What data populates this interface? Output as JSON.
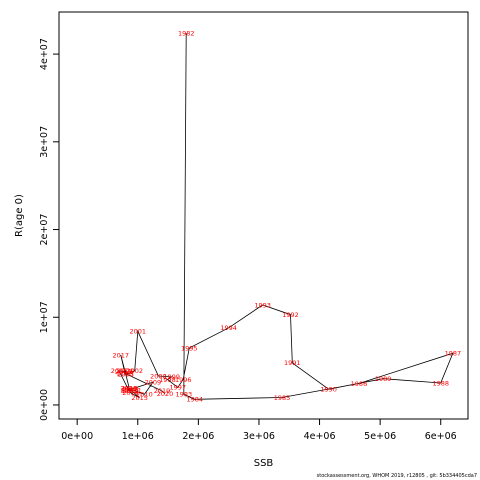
{
  "colors": {
    "label": "#ff0000",
    "line": "#000000",
    "axis": "#000000"
  },
  "footnote": "stockassessment.org, WHOM 2019, r12805 , git: 5b334405cda7",
  "chart_data": {
    "type": "line",
    "xlabel": "SSB",
    "ylabel": "R(age 0)",
    "xlim": [
      -300000,
      6450000
    ],
    "ylim": [
      -1600000,
      44800000
    ],
    "xticks": [
      0,
      1000000,
      2000000,
      3000000,
      4000000,
      5000000,
      6000000
    ],
    "xtick_labels": [
      "0e+00",
      "1e+06",
      "2e+06",
      "3e+06",
      "4e+06",
      "5e+06",
      "6e+06"
    ],
    "yticks": [
      0,
      10000000,
      20000000,
      30000000,
      40000000
    ],
    "ytick_labels": [
      "0e+00",
      "1e+07",
      "2e+07",
      "3e+07",
      "4e+07"
    ],
    "points": [
      {
        "year": "1982",
        "ssb": 1800000,
        "rec": 42400000
      },
      {
        "year": "1983",
        "ssb": 1760000,
        "rec": 1200000
      },
      {
        "year": "1984",
        "ssb": 1940000,
        "rec": 650000
      },
      {
        "year": "1985",
        "ssb": 3380000,
        "rec": 850000
      },
      {
        "year": "1986",
        "ssb": 4650000,
        "rec": 2450000
      },
      {
        "year": "1987",
        "ssb": 6200000,
        "rec": 5900000
      },
      {
        "year": "1988",
        "ssb": 6000000,
        "rec": 2500000
      },
      {
        "year": "1989",
        "ssb": 5050000,
        "rec": 3000000
      },
      {
        "year": "1990",
        "ssb": 4150000,
        "rec": 1800000
      },
      {
        "year": "1991",
        "ssb": 3550000,
        "rec": 4800000
      },
      {
        "year": "1992",
        "ssb": 3520000,
        "rec": 10300000
      },
      {
        "year": "1993",
        "ssb": 3060000,
        "rec": 11400000
      },
      {
        "year": "1994",
        "ssb": 2500000,
        "rec": 8800000
      },
      {
        "year": "1995",
        "ssb": 1850000,
        "rec": 6500000
      },
      {
        "year": "1996",
        "ssb": 1750000,
        "rec": 2900000
      },
      {
        "year": "1997",
        "ssb": 1660000,
        "rec": 2000000
      },
      {
        "year": "1998",
        "ssb": 1490000,
        "rec": 2900000
      },
      {
        "year": "1999",
        "ssb": 1560000,
        "rec": 3200000
      },
      {
        "year": "2000",
        "ssb": 1340000,
        "rec": 3300000
      },
      {
        "year": "2001",
        "ssb": 1000000,
        "rec": 8400000
      },
      {
        "year": "2002",
        "ssb": 950000,
        "rec": 3900000
      },
      {
        "year": "2003",
        "ssb": 800000,
        "rec": 3500000
      },
      {
        "year": "2004",
        "ssb": 790000,
        "rec": 3900000
      },
      {
        "year": "2005",
        "ssb": 760000,
        "rec": 3800000
      },
      {
        "year": "2006",
        "ssb": 690000,
        "rec": 3900000
      },
      {
        "year": "2007",
        "ssb": 850000,
        "rec": 1700000
      },
      {
        "year": "2008",
        "ssb": 880000,
        "rec": 1800000
      },
      {
        "year": "2009",
        "ssb": 1250000,
        "rec": 2600000
      },
      {
        "year": "2010",
        "ssb": 1110000,
        "rec": 1200000
      },
      {
        "year": "2011",
        "ssb": 930000,
        "rec": 1700000
      },
      {
        "year": "2012",
        "ssb": 880000,
        "rec": 1600000
      },
      {
        "year": "2013",
        "ssb": 850000,
        "rec": 1900000
      },
      {
        "year": "2014",
        "ssb": 880000,
        "rec": 1400000
      },
      {
        "year": "2015",
        "ssb": 1030000,
        "rec": 800000
      },
      {
        "year": "2016",
        "ssb": 860000,
        "rec": 1900000
      },
      {
        "year": "2017",
        "ssb": 720000,
        "rec": 5700000
      },
      {
        "year": "2018",
        "ssb": 790000,
        "rec": 3600000
      },
      {
        "year": "2019",
        "ssb": 1400000,
        "rec": 1600000
      },
      {
        "year": "2020",
        "ssb": 1450000,
        "rec": 1300000
      }
    ]
  }
}
